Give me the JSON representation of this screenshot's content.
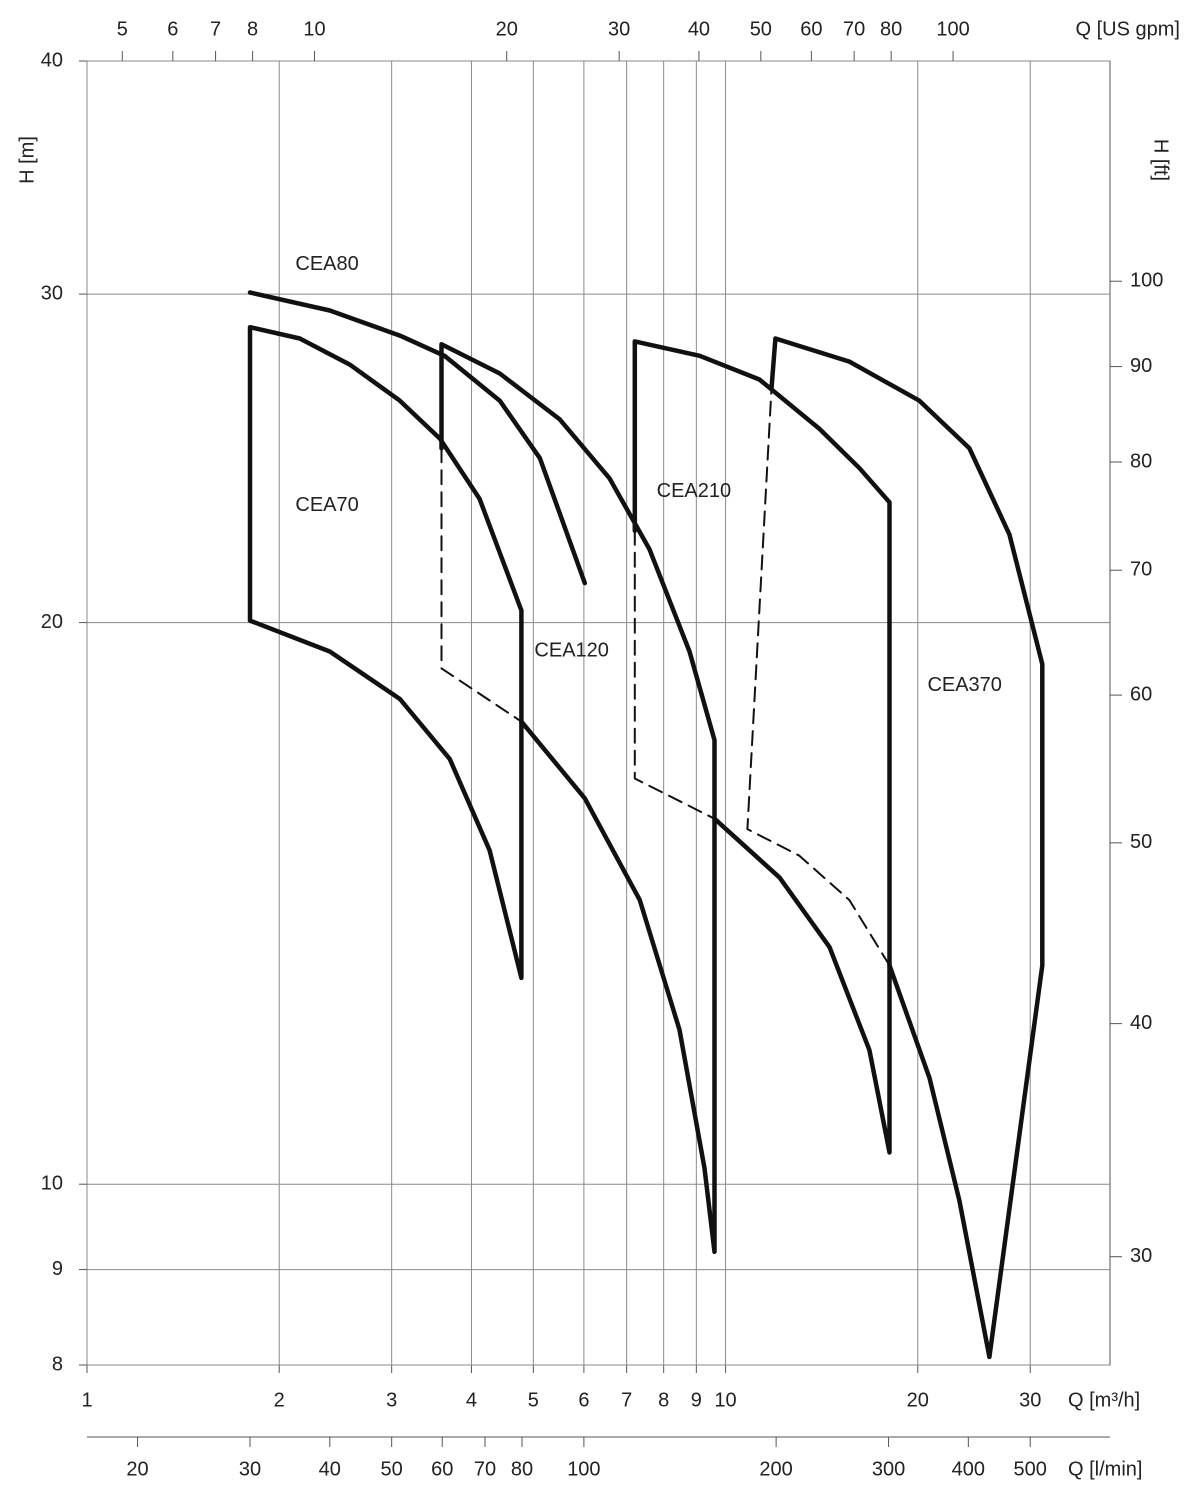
{
  "chart_data": {
    "type": "line",
    "xscale": "log",
    "yscale": "log",
    "xlabel": "Q [m³/h]",
    "xlim": [
      1,
      40
    ],
    "xticks": [
      1,
      2,
      3,
      4,
      5,
      6,
      7,
      8,
      9,
      10,
      20,
      30
    ],
    "ylabel": "H [m]",
    "ylim": [
      8,
      40
    ],
    "yticks": [
      8,
      9,
      10,
      20,
      30,
      40
    ],
    "y2label": "H [ft]",
    "y2lim": [
      26.2467,
      131.2336
    ],
    "y2ticks": [
      30,
      40,
      50,
      60,
      70,
      80,
      90,
      100
    ],
    "top_axis": {
      "label": "Q [US gpm]",
      "lim": [
        4.40287,
        176.115
      ],
      "ticks": [
        5,
        6,
        7,
        8,
        10,
        20,
        30,
        40,
        50,
        60,
        70,
        80,
        100
      ]
    },
    "bottom2_axis": {
      "label": "Q [l/min]",
      "lim": [
        16.6667,
        666.667
      ],
      "ticks": [
        20,
        30,
        40,
        50,
        60,
        70,
        80,
        100,
        200,
        300,
        400,
        500
      ]
    },
    "grid": true,
    "color": "#111111",
    "series": [
      {
        "style": "solid",
        "x": [
          1.8,
          2.4,
          3.09,
          3.63,
          4.43,
          5.12,
          6.02
        ],
        "values": [
          30.06,
          29.4,
          28.5,
          27.8,
          26.3,
          24.5,
          21.0
        ]
      },
      {
        "style": "solid",
        "x": [
          1.8,
          1.8,
          2.154,
          2.58,
          3.09,
          3.57,
          4.12,
          4.79,
          4.79,
          4.27,
          3.7,
          3.09,
          2.4,
          1.8
        ],
        "values": [
          20.05,
          28.8,
          28.4,
          27.5,
          26.3,
          25.1,
          23.3,
          20.3,
          12.9,
          15.1,
          16.9,
          18.2,
          19.3,
          20.05
        ]
      },
      {
        "style": "solid",
        "x": [
          3.59,
          3.59,
          4.43,
          5.5,
          6.58,
          7.6,
          8.78,
          9.61,
          9.61,
          9.27,
          8.47,
          7.34,
          6.02,
          4.79
        ],
        "values": [
          24.8,
          28.2,
          27.2,
          25.7,
          23.9,
          21.9,
          19.3,
          17.3,
          9.2,
          10.2,
          12.1,
          14.2,
          16.1,
          17.7
        ]
      },
      {
        "style": "dashed",
        "x": [
          3.59,
          3.59,
          4.79
        ],
        "values": [
          24.8,
          18.9,
          17.7
        ]
      },
      {
        "style": "solid",
        "x": [
          7.21,
          7.21,
          9.11,
          11.3,
          14.03,
          16.21,
          18.06,
          18.06,
          16.8,
          14.55,
          12.15,
          9.61
        ],
        "values": [
          22.4,
          28.3,
          27.8,
          27.0,
          25.4,
          24.2,
          23.2,
          10.4,
          11.8,
          13.4,
          14.6,
          15.7
        ]
      },
      {
        "style": "dashed",
        "x": [
          7.21,
          7.21,
          9.61
        ],
        "values": [
          22.4,
          16.5,
          15.7
        ]
      },
      {
        "style": "solid",
        "x": [
          11.8,
          11.97,
          15.63,
          20.12,
          24.09,
          27.83,
          31.34,
          31.34,
          25.89,
          23.24,
          20.86,
          18.06
        ],
        "values": [
          26.7,
          28.4,
          27.6,
          26.3,
          24.8,
          22.3,
          19.0,
          13.1,
          8.08,
          9.8,
          11.4,
          13.1
        ]
      },
      {
        "style": "dashed",
        "x": [
          18.06,
          15.63,
          13.05,
          10.82,
          11.8
        ],
        "values": [
          13.1,
          14.2,
          15.0,
          15.5,
          26.7
        ]
      }
    ],
    "annotations": [
      {
        "text": "CEA80",
        "x": 2.12,
        "y": 31.1
      },
      {
        "text": "CEA70",
        "x": 2.12,
        "y": 23.1
      },
      {
        "text": "CEA120",
        "x": 5.02,
        "y": 19.3
      },
      {
        "text": "CEA210",
        "x": 7.8,
        "y": 23.5
      },
      {
        "text": "CEA370",
        "x": 20.71,
        "y": 18.5
      }
    ]
  }
}
